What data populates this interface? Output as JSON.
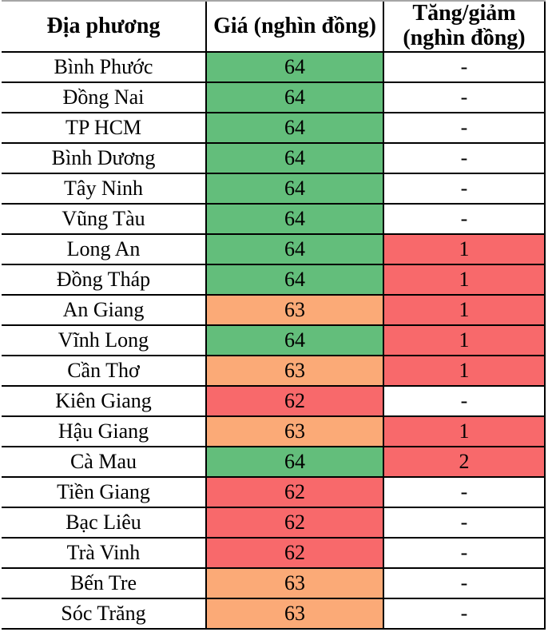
{
  "chart_data": {
    "type": "table",
    "columns": [
      "Địa phương",
      "Giá (nghìn đồng)",
      "Tăng/giảm (nghìn đồng)"
    ],
    "palette": {
      "green": "#63be7b",
      "orange": "#fbaa77",
      "red": "#f8696b",
      "white": "#ffffff",
      "border": "#000000"
    },
    "headers": {
      "location": "Địa phương",
      "price": "Giá (nghìn đồng)",
      "change": "Tăng/giảm (nghìn đồng)"
    },
    "rows": [
      {
        "location": "Bình Phước",
        "price": "64",
        "price_color": "green",
        "change": "-",
        "change_color": "white"
      },
      {
        "location": "Đồng Nai",
        "price": "64",
        "price_color": "green",
        "change": "-",
        "change_color": "white"
      },
      {
        "location": "TP HCM",
        "price": "64",
        "price_color": "green",
        "change": "-",
        "change_color": "white"
      },
      {
        "location": "Bình Dương",
        "price": "64",
        "price_color": "green",
        "change": "-",
        "change_color": "white"
      },
      {
        "location": "Tây Ninh",
        "price": "64",
        "price_color": "green",
        "change": "-",
        "change_color": "white"
      },
      {
        "location": "Vũng Tàu",
        "price": "64",
        "price_color": "green",
        "change": "-",
        "change_color": "white"
      },
      {
        "location": "Long An",
        "price": "64",
        "price_color": "green",
        "change": "1",
        "change_color": "red"
      },
      {
        "location": "Đồng Tháp",
        "price": "64",
        "price_color": "green",
        "change": "1",
        "change_color": "red"
      },
      {
        "location": "An Giang",
        "price": "63",
        "price_color": "orange",
        "change": "1",
        "change_color": "red"
      },
      {
        "location": "Vĩnh Long",
        "price": "64",
        "price_color": "green",
        "change": "1",
        "change_color": "red"
      },
      {
        "location": "Cần Thơ",
        "price": "63",
        "price_color": "orange",
        "change": "1",
        "change_color": "red"
      },
      {
        "location": "Kiên Giang",
        "price": "62",
        "price_color": "red",
        "change": "-",
        "change_color": "white"
      },
      {
        "location": "Hậu Giang",
        "price": "63",
        "price_color": "orange",
        "change": "1",
        "change_color": "red"
      },
      {
        "location": "Cà Mau",
        "price": "64",
        "price_color": "green",
        "change": "2",
        "change_color": "red"
      },
      {
        "location": "Tiền Giang",
        "price": "62",
        "price_color": "red",
        "change": "-",
        "change_color": "white"
      },
      {
        "location": "Bạc Liêu",
        "price": "62",
        "price_color": "red",
        "change": "-",
        "change_color": "white"
      },
      {
        "location": "Trà Vinh",
        "price": "62",
        "price_color": "red",
        "change": "-",
        "change_color": "white"
      },
      {
        "location": "Bến Tre",
        "price": "63",
        "price_color": "orange",
        "change": "-",
        "change_color": "white"
      },
      {
        "location": "Sóc Trăng",
        "price": "63",
        "price_color": "orange",
        "change": "-",
        "change_color": "white"
      }
    ]
  }
}
